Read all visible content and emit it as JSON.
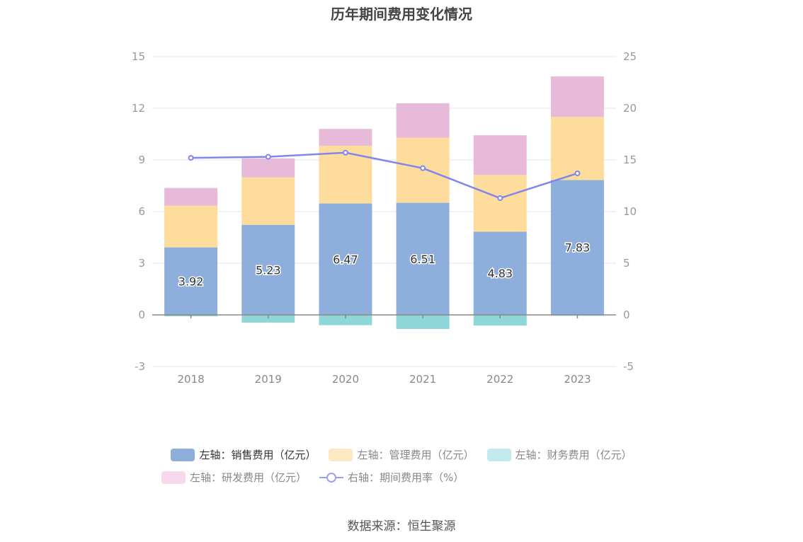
{
  "chart_data": {
    "type": "bar",
    "title": "历年期间费用变化情况",
    "categories": [
      "2018",
      "2019",
      "2020",
      "2021",
      "2022",
      "2023"
    ],
    "left_axis": {
      "min": -3,
      "max": 15,
      "ticks": [
        "-3",
        "0",
        "3",
        "6",
        "9",
        "12",
        "15"
      ]
    },
    "right_axis": {
      "min": -5,
      "max": 25,
      "ticks": [
        "-5",
        "0",
        "5",
        "10",
        "15",
        "20",
        "25"
      ]
    },
    "series": [
      {
        "name": "左轴：销售费用（亿元）",
        "type": "bar",
        "axis": "left",
        "color": "#8eaedb",
        "values": [
          3.92,
          5.23,
          6.47,
          6.51,
          4.83,
          7.83
        ],
        "labels": [
          "3.92",
          "5.23",
          "6.47",
          "6.51",
          "4.83",
          "7.83"
        ]
      },
      {
        "name": "左轴：管理费用（亿元）",
        "type": "bar",
        "axis": "left",
        "color": "#fedc9c",
        "values": [
          2.42,
          2.76,
          3.35,
          3.78,
          3.3,
          3.67
        ]
      },
      {
        "name": "左轴：财务费用（亿元）",
        "type": "bar",
        "axis": "left",
        "color": "#8fd6d9",
        "values": [
          -0.08,
          -0.45,
          -0.6,
          -0.82,
          -0.62,
          -0.05
        ]
      },
      {
        "name": "左轴：研发费用（亿元）",
        "type": "bar",
        "axis": "left",
        "color": "#e8bad9",
        "values": [
          1.03,
          1.1,
          0.98,
          2.0,
          2.3,
          2.35
        ]
      },
      {
        "name": "右轴：期间费用率（%）",
        "type": "line",
        "axis": "right",
        "color": "#8086ee",
        "values": [
          15.2,
          15.3,
          15.7,
          14.2,
          11.3,
          13.7
        ]
      }
    ]
  },
  "legend": {
    "sales": "左轴：销售费用（亿元）",
    "admin": "左轴：管理费用（亿元）",
    "finance": "左轴：财务费用（亿元）",
    "rnd": "左轴：研发费用（亿元）",
    "rate": "右轴：期间费用率（%）"
  },
  "colors": {
    "sales": "#8eaedb",
    "admin": "#fedc9c",
    "finance": "#8fd6d9",
    "rnd": "#e8bad9",
    "rate": "#8086ee",
    "legend_sales": "#8eaedb",
    "legend_admin": "#fde8c4",
    "legend_finance": "#c2e9ec",
    "legend_rnd": "#f3d9ea"
  },
  "source": "数据来源：恒生聚源"
}
